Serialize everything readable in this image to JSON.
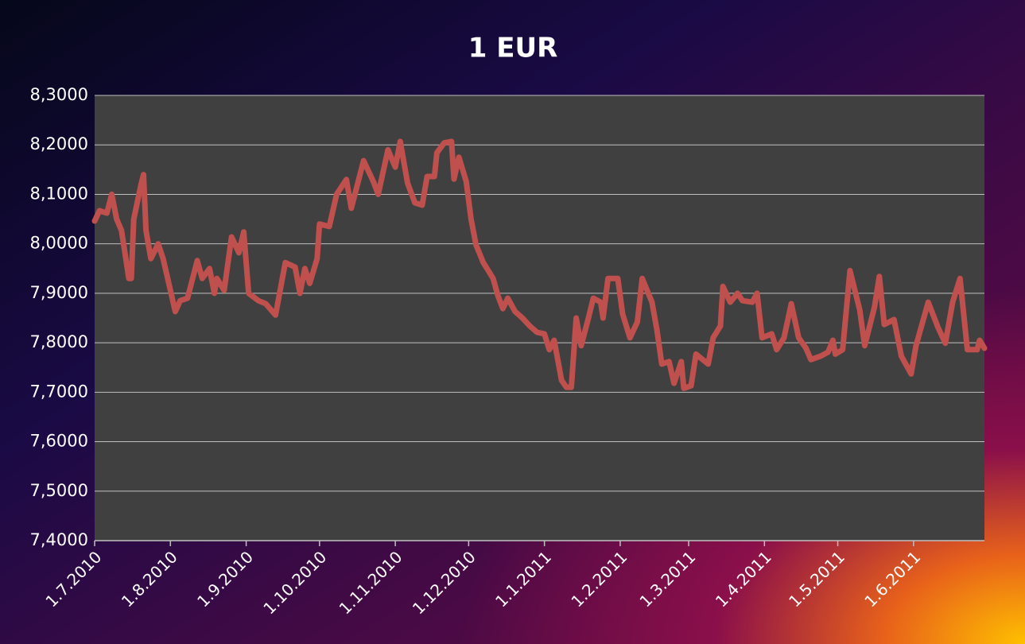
{
  "chart_data": {
    "type": "line",
    "title": "1 EUR",
    "color": "#c0504d",
    "grid": true,
    "x": [
      "2010-07-01",
      "2010-07-03",
      "2010-07-06",
      "2010-07-08",
      "2010-07-10",
      "2010-07-12",
      "2010-07-14",
      "2010-07-15",
      "2010-07-16",
      "2010-07-17",
      "2010-07-20",
      "2010-07-21",
      "2010-07-22",
      "2010-07-24",
      "2010-07-26",
      "2010-07-27",
      "2010-07-29",
      "2010-08-01",
      "2010-08-03",
      "2010-08-05",
      "2010-08-08",
      "2010-08-12",
      "2010-08-14",
      "2010-08-17",
      "2010-08-19",
      "2010-08-20",
      "2010-08-23",
      "2010-08-26",
      "2010-08-29",
      "2010-08-31",
      "2010-09-02",
      "2010-09-06",
      "2010-09-09",
      "2010-09-13",
      "2010-09-17",
      "2010-09-21",
      "2010-09-23",
      "2010-09-25",
      "2010-09-27",
      "2010-09-30",
      "2010-10-01",
      "2010-10-05",
      "2010-10-08",
      "2010-10-12",
      "2010-10-14",
      "2010-10-19",
      "2010-10-23",
      "2010-10-25",
      "2010-10-29",
      "2010-11-01",
      "2010-11-03",
      "2010-11-06",
      "2010-11-09",
      "2010-11-12",
      "2010-11-14",
      "2010-11-17",
      "2010-11-18",
      "2010-11-21",
      "2010-11-24",
      "2010-11-25",
      "2010-11-27",
      "2010-11-30",
      "2010-12-02",
      "2010-12-04",
      "2010-12-07",
      "2010-12-11",
      "2010-12-13",
      "2010-12-15",
      "2010-12-17",
      "2010-12-20",
      "2010-12-23",
      "2010-12-26",
      "2010-12-29",
      "2011-01-01",
      "2011-01-03",
      "2011-01-05",
      "2011-01-08",
      "2011-01-10",
      "2011-01-12",
      "2011-01-14",
      "2011-01-16",
      "2011-01-19",
      "2011-01-21",
      "2011-01-24",
      "2011-01-25",
      "2011-01-27",
      "2011-01-31",
      "2011-02-02",
      "2011-02-05",
      "2011-02-08",
      "2011-02-10",
      "2011-02-14",
      "2011-02-16",
      "2011-02-18",
      "2011-02-21",
      "2011-02-23",
      "2011-02-26",
      "2011-02-27",
      "2011-03-02",
      "2011-03-04",
      "2011-03-09",
      "2011-03-11",
      "2011-03-14",
      "2011-03-15",
      "2011-03-18",
      "2011-03-21",
      "2011-03-23",
      "2011-03-27",
      "2011-03-29",
      "2011-03-31",
      "2011-04-04",
      "2011-04-06",
      "2011-04-09",
      "2011-04-12",
      "2011-04-15",
      "2011-04-18",
      "2011-04-20",
      "2011-04-24",
      "2011-04-27",
      "2011-04-29",
      "2011-04-30",
      "2011-05-03",
      "2011-05-06",
      "2011-05-10",
      "2011-05-12",
      "2011-05-16",
      "2011-05-18",
      "2011-05-20",
      "2011-05-24",
      "2011-05-27",
      "2011-05-31",
      "2011-06-02",
      "2011-06-07",
      "2011-06-11",
      "2011-06-14",
      "2011-06-17",
      "2011-06-20",
      "2011-06-23",
      "2011-06-27",
      "2011-06-28",
      "2011-06-30"
    ],
    "values": [
      8.046,
      8.067,
      8.062,
      8.1,
      8.05,
      8.027,
      7.962,
      7.93,
      7.93,
      8.05,
      8.12,
      8.14,
      8.027,
      7.97,
      7.99,
      8.0,
      7.97,
      7.906,
      7.863,
      7.885,
      7.89,
      7.966,
      7.93,
      7.95,
      7.9,
      7.93,
      7.906,
      8.014,
      7.982,
      8.024,
      7.9,
      7.885,
      7.879,
      7.856,
      7.962,
      7.953,
      7.9,
      7.95,
      7.92,
      7.97,
      8.04,
      8.035,
      8.1,
      8.13,
      8.072,
      8.168,
      8.126,
      8.1,
      8.19,
      8.155,
      8.207,
      8.123,
      8.083,
      8.078,
      8.136,
      8.136,
      8.184,
      8.204,
      8.207,
      8.131,
      8.175,
      8.126,
      8.05,
      7.998,
      7.962,
      7.93,
      7.895,
      7.869,
      7.89,
      7.863,
      7.85,
      7.834,
      7.821,
      7.818,
      7.786,
      7.805,
      7.724,
      7.71,
      7.71,
      7.85,
      7.794,
      7.85,
      7.89,
      7.882,
      7.85,
      7.93,
      7.93,
      7.858,
      7.81,
      7.842,
      7.93,
      7.882,
      7.826,
      7.757,
      7.762,
      7.718,
      7.762,
      7.708,
      7.713,
      7.777,
      7.757,
      7.81,
      7.834,
      7.914,
      7.882,
      7.9,
      7.885,
      7.882,
      7.9,
      7.81,
      7.818,
      7.786,
      7.81,
      7.879,
      7.81,
      7.789,
      7.766,
      7.773,
      7.781,
      7.805,
      7.777,
      7.786,
      7.946,
      7.866,
      7.794,
      7.872,
      7.934,
      7.837,
      7.847,
      7.773,
      7.737,
      7.794,
      7.882,
      7.831,
      7.799,
      7.882,
      7.93,
      7.786,
      7.786,
      7.805,
      7.789
    ],
    "xlim": [
      "2010-07-01",
      "2011-06-30"
    ],
    "xticks": [
      {
        "value": "2010-07-01",
        "label": "1.7.2010"
      },
      {
        "value": "2010-08-01",
        "label": "1.8.2010"
      },
      {
        "value": "2010-09-01",
        "label": "1.9.2010"
      },
      {
        "value": "2010-10-01",
        "label": "1.10.2010"
      },
      {
        "value": "2010-11-01",
        "label": "1.11.2010"
      },
      {
        "value": "2010-12-01",
        "label": "1.12.2010"
      },
      {
        "value": "2011-01-01",
        "label": "1.1.2011"
      },
      {
        "value": "2011-02-01",
        "label": "1.2.2011"
      },
      {
        "value": "2011-03-01",
        "label": "1.3.2011"
      },
      {
        "value": "2011-04-01",
        "label": "1.4.2011"
      },
      {
        "value": "2011-05-01",
        "label": "1.5.2011"
      },
      {
        "value": "2011-06-01",
        "label": "1.6.2011"
      }
    ],
    "ylim": [
      7.4,
      8.3
    ],
    "yticks": [
      {
        "value": 7.4,
        "label": "7,4000"
      },
      {
        "value": 7.5,
        "label": "7,5000"
      },
      {
        "value": 7.6,
        "label": "7,6000"
      },
      {
        "value": 7.7,
        "label": "7,7000"
      },
      {
        "value": 7.8,
        "label": "7,8000"
      },
      {
        "value": 7.9,
        "label": "7,9000"
      },
      {
        "value": 8.0,
        "label": "8,0000"
      },
      {
        "value": 8.1,
        "label": "8,1000"
      },
      {
        "value": 8.2,
        "label": "8,2000"
      },
      {
        "value": 8.3,
        "label": "8,3000"
      }
    ]
  }
}
